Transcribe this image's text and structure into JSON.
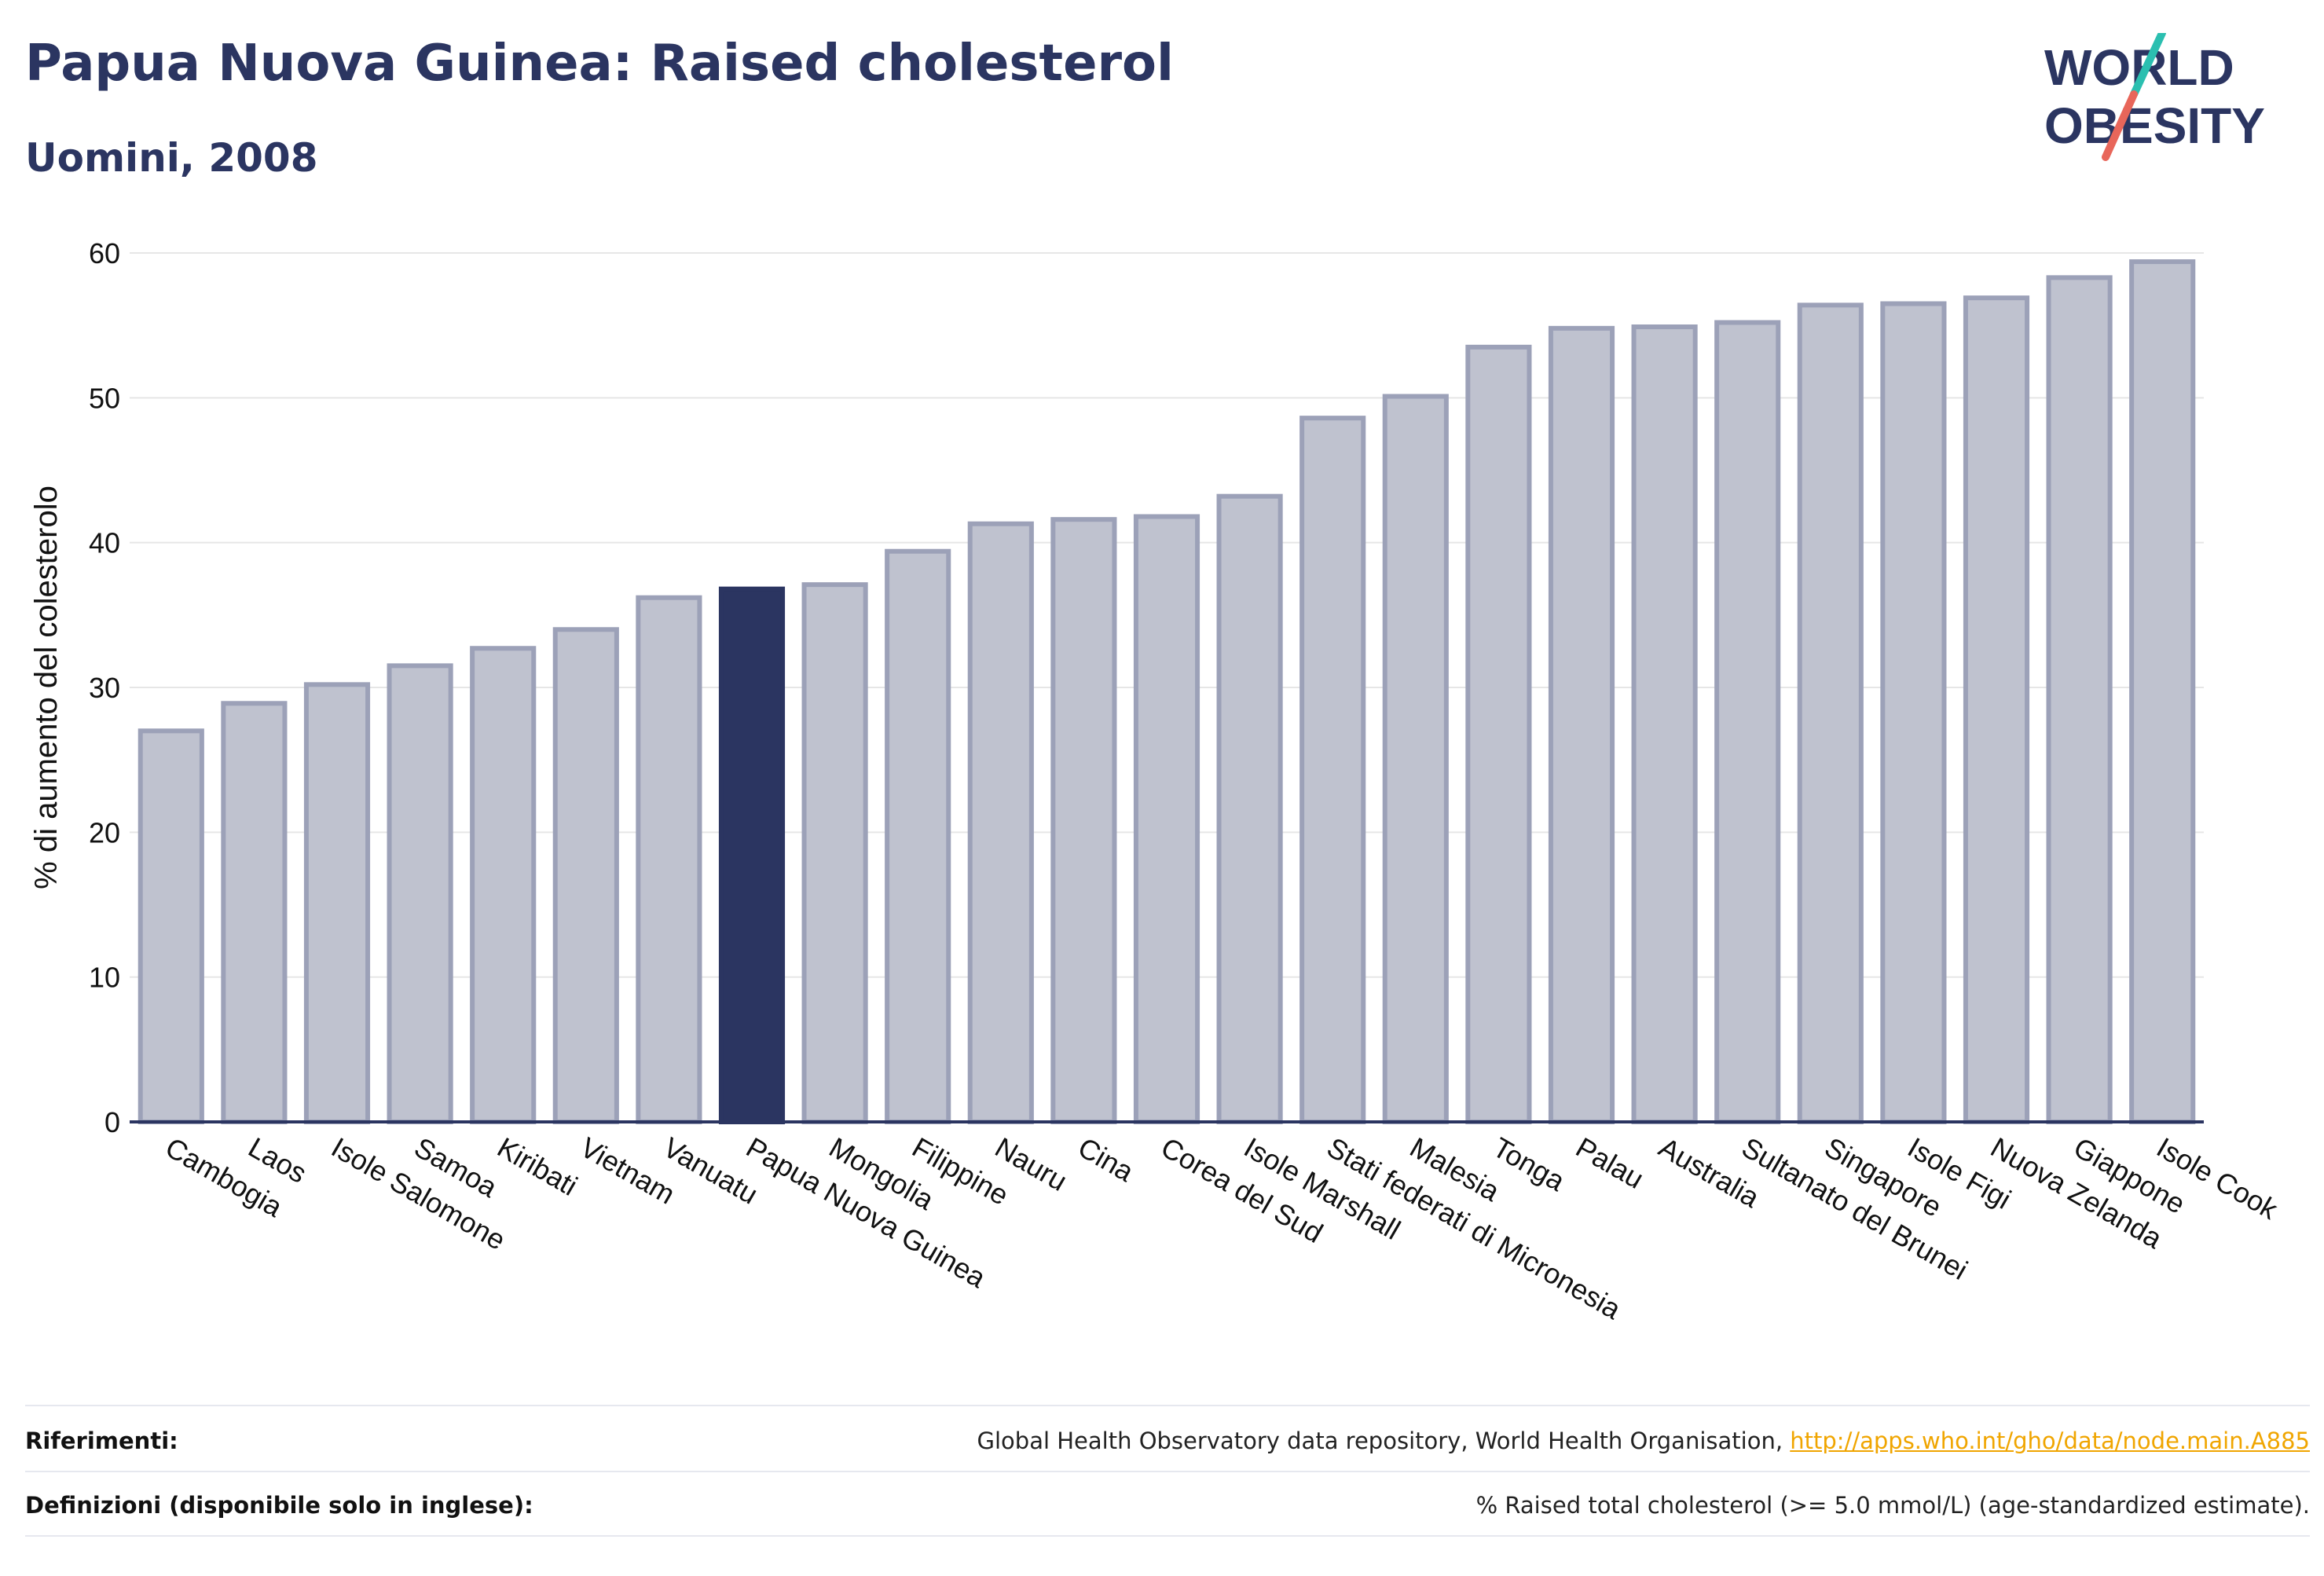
{
  "header": {
    "title": "Papua Nuova Guinea: Raised cholesterol",
    "subtitle": "Uomini, 2008"
  },
  "logo": {
    "line1": "WORLD",
    "line2": "OBESITY",
    "colors": {
      "text": "#2b3561",
      "slash_top": "#2bbfb0",
      "slash_bottom": "#e8665a"
    }
  },
  "chart_data": {
    "type": "bar",
    "ylabel": "% di aumento del colesterolo",
    "ylim": [
      0,
      60
    ],
    "yticks": [
      0,
      10,
      20,
      30,
      40,
      50,
      60
    ],
    "grid": true,
    "highlight": "Papua Nuova Guinea",
    "colors": {
      "bar": "#bfc2cf",
      "bar_edge": "#9ca1b8",
      "highlight": "#2b3561",
      "grid": "#e6e6e6",
      "axis": "#2b3561"
    },
    "categories": [
      "Cambogia",
      "Laos",
      "Isole Salomone",
      "Samoa",
      "Kiribati",
      "Vietnam",
      "Vanuatu",
      "Papua Nuova Guinea",
      "Mongolia",
      "Filippine",
      "Nauru",
      "Cina",
      "Corea del Sud",
      "Isole Marshall",
      "Stati federati di Micronesia",
      "Malesia",
      "Tonga",
      "Palau",
      "Australia",
      "Sultanato del Brunei",
      "Singapore",
      "Isole Figi",
      "Nuova Zelanda",
      "Giappone",
      "Isole Cook"
    ],
    "values": [
      27.0,
      28.9,
      30.2,
      31.5,
      32.7,
      34.0,
      36.2,
      36.8,
      37.1,
      39.4,
      41.3,
      41.6,
      41.8,
      43.2,
      48.6,
      50.1,
      53.5,
      54.8,
      54.9,
      55.2,
      56.4,
      56.5,
      56.9,
      58.3,
      59.4
    ]
  },
  "footer": {
    "references_label": "Riferimenti:",
    "references_text": "Global Health Observatory data repository, World Health Organisation, ",
    "references_link": "http://apps.who.int/gho/data/node.main.A885",
    "definitions_label": "Definizioni (disponibile solo in inglese):",
    "definitions_text": "% Raised total cholesterol (>= 5.0 mmol/L) (age-standardized estimate)."
  }
}
